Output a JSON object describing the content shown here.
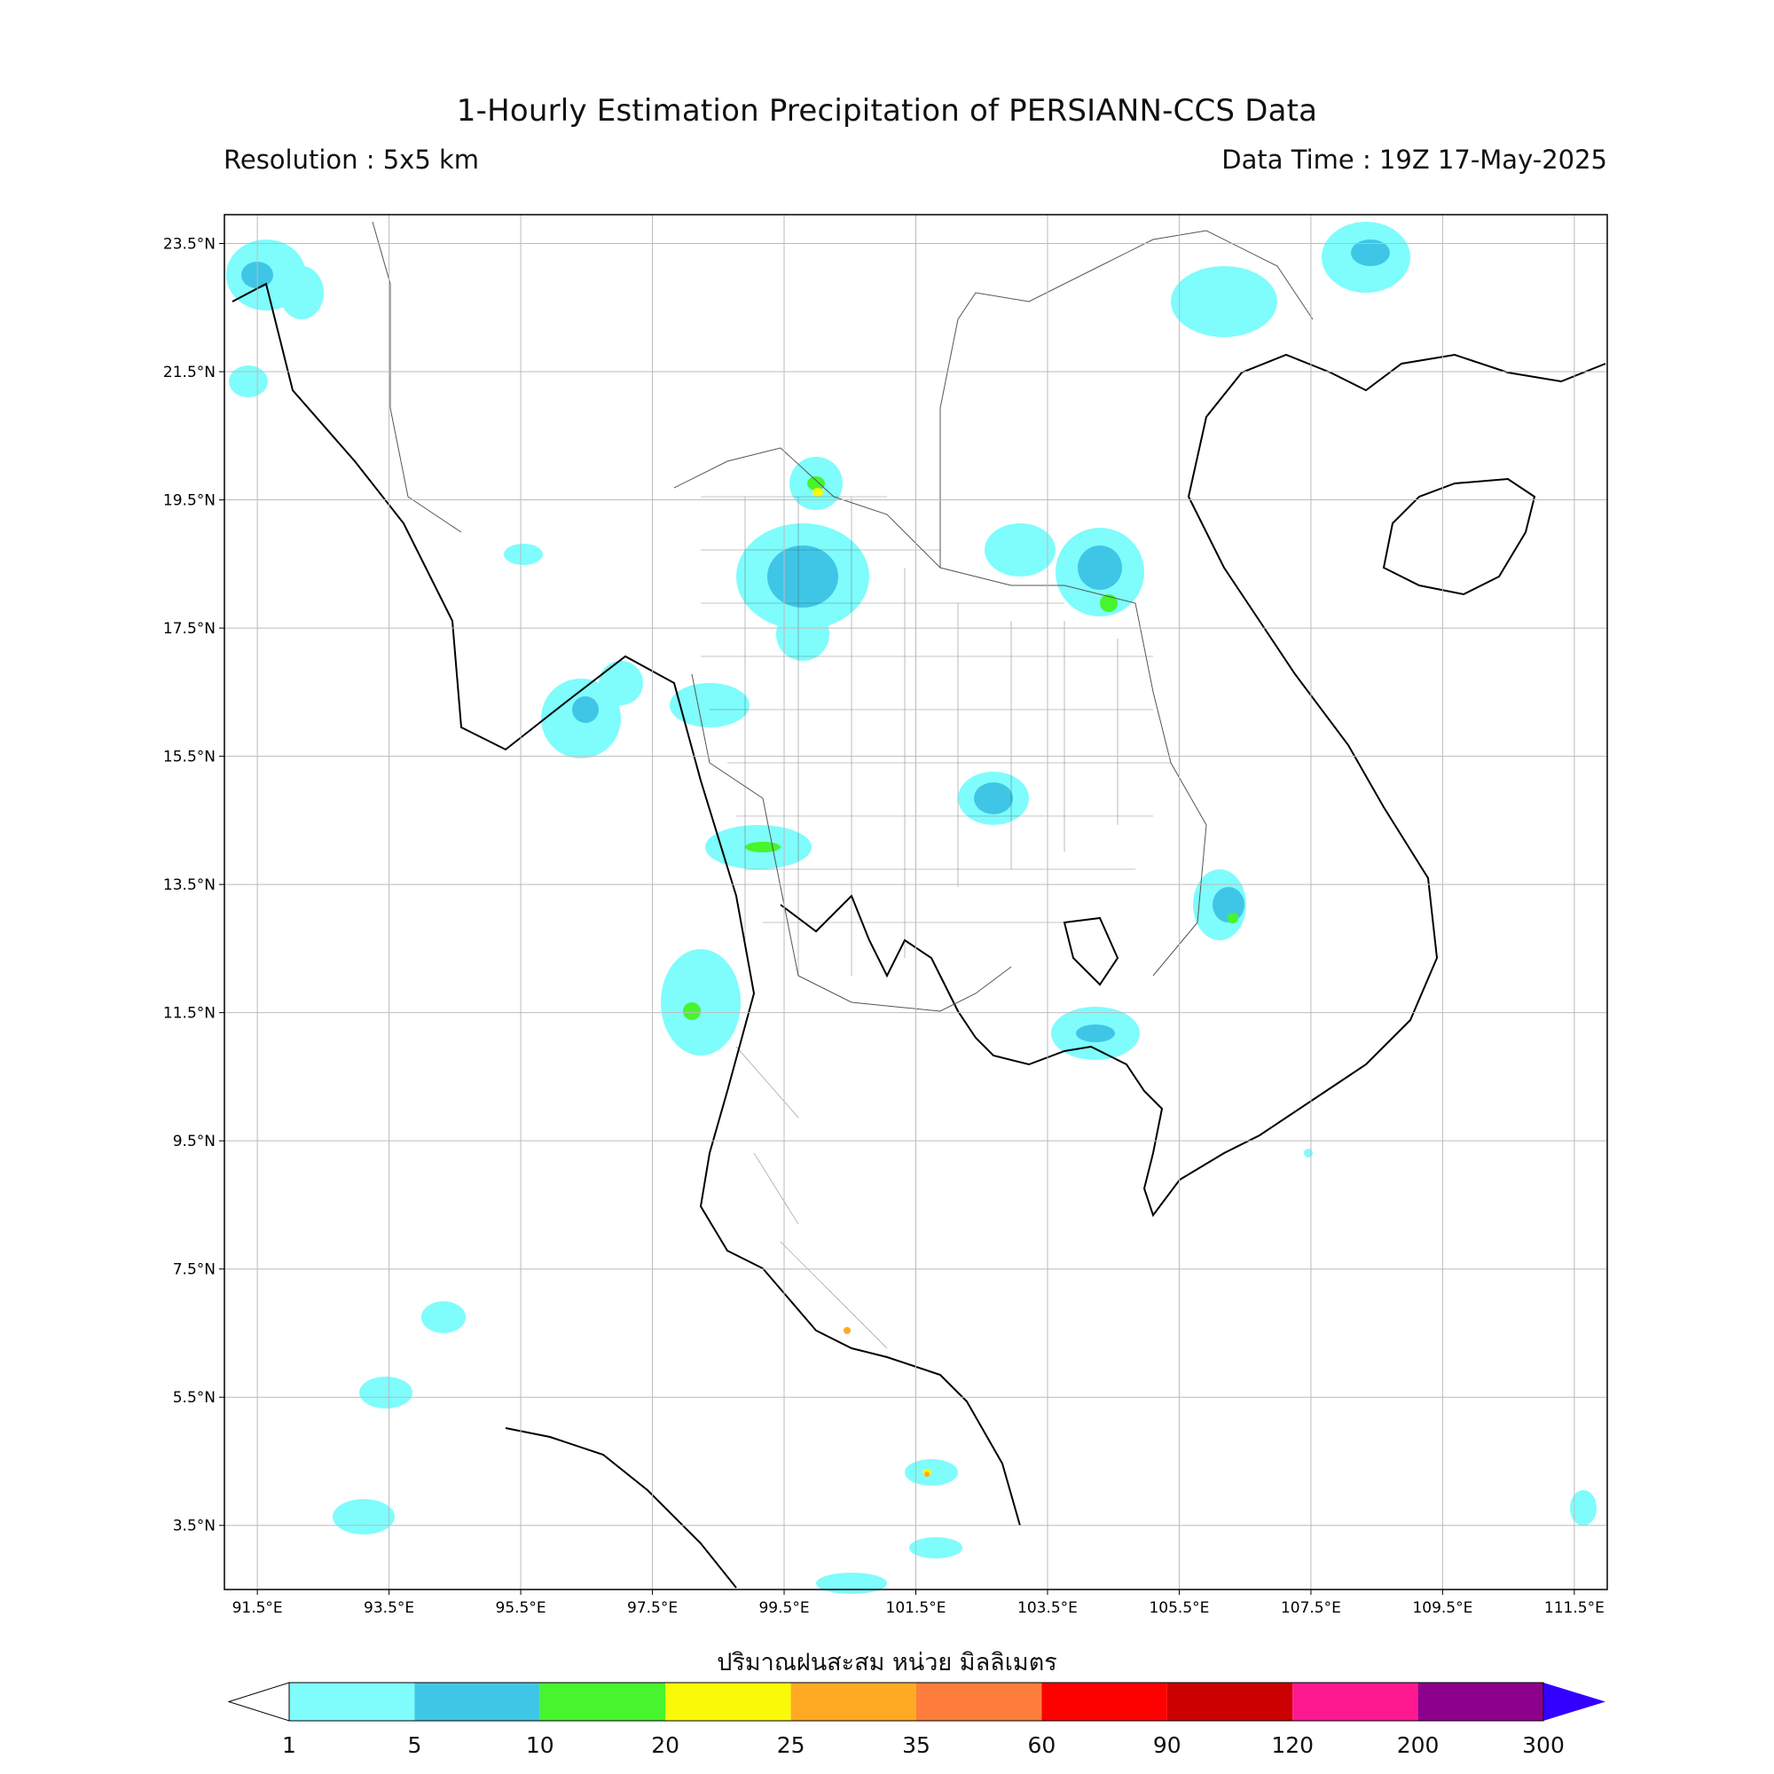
{
  "title": "1-Hourly Estimation Precipitation of PERSIANN-CCS Data",
  "resolution": "Resolution : 5x5 km",
  "data_time": "Data Time : 19Z 17-May-2025",
  "map": {
    "extent": {
      "lon_min": 91.0,
      "lon_max": 112.0,
      "lat_min": 2.5,
      "lat_max": 23.95
    },
    "lat_ticks": [
      "23.5°N",
      "21.5°N",
      "19.5°N",
      "17.5°N",
      "15.5°N",
      "13.5°N",
      "11.5°N",
      "9.5°N",
      "7.5°N",
      "5.5°N",
      "3.5°N"
    ],
    "lon_ticks": [
      "91.5°E",
      "93.5°E",
      "95.5°E",
      "97.5°E",
      "99.5°E",
      "101.5°E",
      "103.5°E",
      "105.5°E",
      "107.5°E",
      "109.5°E",
      "111.5°E"
    ],
    "lat_values": [
      23.5,
      21.5,
      19.5,
      17.5,
      15.5,
      13.5,
      11.5,
      9.5,
      7.5,
      5.5,
      3.5
    ],
    "lon_values": [
      91.5,
      93.5,
      95.5,
      97.5,
      99.5,
      101.5,
      103.5,
      105.5,
      107.5,
      109.5,
      111.5
    ],
    "grid": true
  },
  "colorbar": {
    "label": "ปริมาณฝนสะสม หน่วย มิลลิเมตร",
    "ticks": [
      "1",
      "5",
      "10",
      "20",
      "25",
      "35",
      "60",
      "90",
      "120",
      "200",
      "300"
    ],
    "colors": [
      "#7ffcfc",
      "#3fc6e6",
      "#46f52c",
      "#f8fa08",
      "#ffaa22",
      "#ff7d3c",
      "#fd0000",
      "#cc0000",
      "#fe1990",
      "#8c008c"
    ],
    "over_color": "#3300ff",
    "under_color": "#ffffff"
  }
}
